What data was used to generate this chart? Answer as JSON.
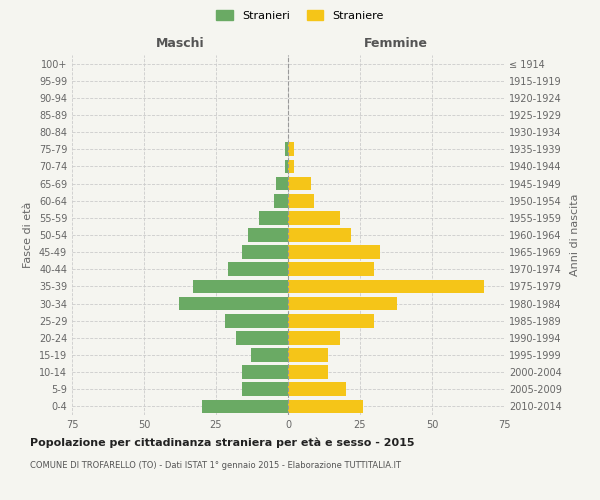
{
  "age_groups": [
    "0-4",
    "5-9",
    "10-14",
    "15-19",
    "20-24",
    "25-29",
    "30-34",
    "35-39",
    "40-44",
    "45-49",
    "50-54",
    "55-59",
    "60-64",
    "65-69",
    "70-74",
    "75-79",
    "80-84",
    "85-89",
    "90-94",
    "95-99",
    "100+"
  ],
  "birth_years": [
    "2010-2014",
    "2005-2009",
    "2000-2004",
    "1995-1999",
    "1990-1994",
    "1985-1989",
    "1980-1984",
    "1975-1979",
    "1970-1974",
    "1965-1969",
    "1960-1964",
    "1955-1959",
    "1950-1954",
    "1945-1949",
    "1940-1944",
    "1935-1939",
    "1930-1934",
    "1925-1929",
    "1920-1924",
    "1915-1919",
    "≤ 1914"
  ],
  "maschi": [
    30,
    16,
    16,
    13,
    18,
    22,
    38,
    33,
    21,
    16,
    14,
    10,
    5,
    4,
    1,
    1,
    0,
    0,
    0,
    0,
    0
  ],
  "femmine": [
    26,
    20,
    14,
    14,
    18,
    30,
    38,
    68,
    30,
    32,
    22,
    18,
    9,
    8,
    2,
    2,
    0,
    0,
    0,
    0,
    0
  ],
  "maschi_color": "#6aaa64",
  "femmine_color": "#f5c518",
  "background_color": "#f5f5f0",
  "grid_color": "#cccccc",
  "bar_height": 0.8,
  "xlim": 75,
  "title": "Popolazione per cittadinanza straniera per età e sesso - 2015",
  "subtitle": "COMUNE DI TROFARELLO (TO) - Dati ISTAT 1° gennaio 2015 - Elaborazione TUTTITALIA.IT",
  "ylabel_left": "Fasce di età",
  "ylabel_right": "Anni di nascita",
  "xlabel_left": "Maschi",
  "xlabel_right": "Femmine",
  "legend_stranieri": "Stranieri",
  "legend_straniere": "Straniere"
}
